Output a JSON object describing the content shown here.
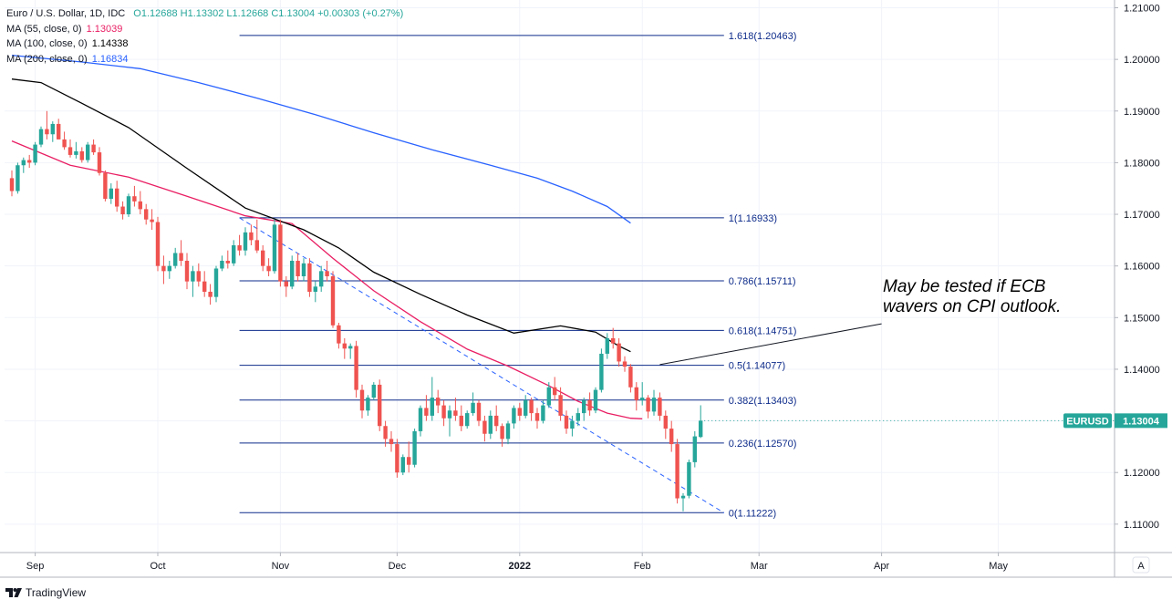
{
  "header": {
    "symbol_line": "Euro / U.S. Dollar, 1D, IDC",
    "ohlc": "O1.12688  H1.13302  L1.12668  C1.13004  +0.00303 (+0.27%)",
    "ma55_label": "MA (55, close, 0)",
    "ma55_value": "1.13039",
    "ma100_label": "MA (100, close, 0)",
    "ma100_value": "1.14338",
    "ma200_label": "MA (200, close, 0)",
    "ma200_value": "1.16834"
  },
  "colors": {
    "up": "#26a69a",
    "down": "#ef5350",
    "ma55": "#e91e63",
    "ma100": "#000000",
    "ma200": "#2962ff",
    "fib": "#0d2b8a",
    "badge": "#26a69a"
  },
  "price_badge": {
    "symbol": "EURUSD",
    "price": "1.13004"
  },
  "annotation": {
    "line1": "May be tested if ECB",
    "line2": "wavers on CPI outlook."
  },
  "footer": {
    "brand": "TradingView",
    "auto_button": "A"
  },
  "chart_data": {
    "type": "candlestick",
    "title": "Euro / U.S. Dollar, 1D, IDC",
    "ylim": [
      1.1045,
      1.2115
    ],
    "y_ticks": [
      1.11,
      1.12,
      1.13,
      1.14,
      1.15,
      1.16,
      1.17,
      1.18,
      1.19,
      1.2,
      1.21
    ],
    "y_tick_labels": [
      "1.11000",
      "1.12000",
      "1.13000",
      "1.14000",
      "1.15000",
      "1.16000",
      "1.17000",
      "1.18000",
      "1.19000",
      "1.20000",
      "1.21000"
    ],
    "x_range": [
      0,
      209
    ],
    "x_ticks": [
      {
        "index": 4,
        "label": "Sep",
        "bold": false
      },
      {
        "index": 25,
        "label": "Oct",
        "bold": false
      },
      {
        "index": 46,
        "label": "Nov",
        "bold": false
      },
      {
        "index": 66,
        "label": "Dec",
        "bold": false
      },
      {
        "index": 87,
        "label": "2022",
        "bold": true
      },
      {
        "index": 108,
        "label": "Feb",
        "bold": false
      },
      {
        "index": 128,
        "label": "Mar",
        "bold": false
      },
      {
        "index": 149,
        "label": "Apr",
        "bold": false
      },
      {
        "index": 169,
        "label": "May",
        "bold": false
      }
    ],
    "fib_levels": [
      {
        "ratio": "1.618",
        "value": 1.20463,
        "label": "1.618(1.20463)"
      },
      {
        "ratio": "1",
        "value": 1.16933,
        "label": "1(1.16933)"
      },
      {
        "ratio": "0.786",
        "value": 1.15711,
        "label": "0.786(1.15711)"
      },
      {
        "ratio": "0.618",
        "value": 1.14751,
        "label": "0.618(1.14751)"
      },
      {
        "ratio": "0.5",
        "value": 1.14077,
        "label": "0.5(1.14077)"
      },
      {
        "ratio": "0.382",
        "value": 1.13403,
        "label": "0.382(1.13403)"
      },
      {
        "ratio": "0.236",
        "value": 1.1257,
        "label": "0.236(1.12570)"
      },
      {
        "ratio": "0",
        "value": 1.11222,
        "label": "0(1.11222)"
      }
    ],
    "fib_x_range": [
      39,
      122
    ],
    "trendline": {
      "points": [
        [
          39,
          1.1693
        ],
        [
          122,
          1.1122
        ]
      ],
      "style": "dashed"
    },
    "annotation_pointer": {
      "from": [
        111,
        1.1409
      ],
      "to": [
        139,
        1.1502
      ]
    },
    "ma_series": [
      {
        "name": "MA (55, close, 0)",
        "last": 1.13039,
        "points": [
          [
            0,
            1.1842
          ],
          [
            10,
            1.1795
          ],
          [
            20,
            1.1772
          ],
          [
            30,
            1.1735
          ],
          [
            40,
            1.1697
          ],
          [
            48,
            1.1682
          ],
          [
            55,
            1.1615
          ],
          [
            62,
            1.1552
          ],
          [
            70,
            1.1492
          ],
          [
            78,
            1.1439
          ],
          [
            85,
            1.1406
          ],
          [
            92,
            1.1368
          ],
          [
            97,
            1.1338
          ],
          [
            102,
            1.1315
          ],
          [
            106,
            1.1305
          ],
          [
            108,
            1.1304
          ]
        ]
      },
      {
        "name": "MA (100, close, 0)",
        "last": 1.14338,
        "points": [
          [
            0,
            1.1962
          ],
          [
            5,
            1.1955
          ],
          [
            12,
            1.1915
          ],
          [
            20,
            1.1868
          ],
          [
            30,
            1.1789
          ],
          [
            40,
            1.1712
          ],
          [
            50,
            1.167
          ],
          [
            56,
            1.1635
          ],
          [
            62,
            1.1588
          ],
          [
            70,
            1.1545
          ],
          [
            78,
            1.1505
          ],
          [
            86,
            1.147
          ],
          [
            94,
            1.1484
          ],
          [
            100,
            1.1472
          ],
          [
            104,
            1.1445
          ],
          [
            106,
            1.1434
          ]
        ]
      },
      {
        "name": "MA (200, close, 0)",
        "last": 1.16834,
        "points": [
          [
            0,
            1.2008
          ],
          [
            12,
            1.1995
          ],
          [
            22,
            1.1982
          ],
          [
            32,
            1.1955
          ],
          [
            42,
            1.1925
          ],
          [
            52,
            1.1893
          ],
          [
            62,
            1.1858
          ],
          [
            72,
            1.1825
          ],
          [
            82,
            1.1795
          ],
          [
            90,
            1.177
          ],
          [
            96,
            1.1745
          ],
          [
            102,
            1.1715
          ],
          [
            106,
            1.1683
          ]
        ]
      }
    ],
    "candles": [
      [
        1.177,
        1.1785,
        1.1735,
        1.1745
      ],
      [
        1.1745,
        1.18,
        1.174,
        1.1795
      ],
      [
        1.1795,
        1.181,
        1.178,
        1.1805
      ],
      [
        1.1805,
        1.1815,
        1.179,
        1.18
      ],
      [
        1.18,
        1.184,
        1.1795,
        1.1835
      ],
      [
        1.1835,
        1.187,
        1.183,
        1.1865
      ],
      [
        1.1865,
        1.19,
        1.1845,
        1.1855
      ],
      [
        1.1855,
        1.188,
        1.184,
        1.1875
      ],
      [
        1.1875,
        1.1885,
        1.185,
        1.1845
      ],
      [
        1.1845,
        1.186,
        1.1825,
        1.183
      ],
      [
        1.183,
        1.1845,
        1.181,
        1.1815
      ],
      [
        1.1815,
        1.184,
        1.1808,
        1.1822
      ],
      [
        1.1822,
        1.183,
        1.18,
        1.1805
      ],
      [
        1.1805,
        1.184,
        1.18,
        1.1835
      ],
      [
        1.1835,
        1.1845,
        1.1815,
        1.182
      ],
      [
        1.182,
        1.183,
        1.1775,
        1.178
      ],
      [
        1.178,
        1.1785,
        1.1725,
        1.173
      ],
      [
        1.173,
        1.176,
        1.172,
        1.175
      ],
      [
        1.175,
        1.1765,
        1.1705,
        1.1715
      ],
      [
        1.1715,
        1.1725,
        1.169,
        1.17
      ],
      [
        1.17,
        1.174,
        1.1695,
        1.1735
      ],
      [
        1.1735,
        1.1755,
        1.1715,
        1.1725
      ],
      [
        1.1725,
        1.1745,
        1.17,
        1.171
      ],
      [
        1.171,
        1.172,
        1.168,
        1.169
      ],
      [
        1.169,
        1.171,
        1.167,
        1.1685
      ],
      [
        1.1685,
        1.1695,
        1.159,
        1.16
      ],
      [
        1.16,
        1.162,
        1.1565,
        1.159
      ],
      [
        1.159,
        1.161,
        1.1575,
        1.16
      ],
      [
        1.16,
        1.1635,
        1.1595,
        1.1625
      ],
      [
        1.1625,
        1.165,
        1.16,
        1.161
      ],
      [
        1.161,
        1.1625,
        1.1555,
        1.157
      ],
      [
        1.157,
        1.16,
        1.154,
        1.159
      ],
      [
        1.159,
        1.1605,
        1.156,
        1.157
      ],
      [
        1.157,
        1.159,
        1.154,
        1.155
      ],
      [
        1.155,
        1.1565,
        1.1525,
        1.154
      ],
      [
        1.154,
        1.16,
        1.153,
        1.1595
      ],
      [
        1.1595,
        1.162,
        1.159,
        1.161
      ],
      [
        1.161,
        1.163,
        1.1595,
        1.1605
      ],
      [
        1.1605,
        1.165,
        1.16,
        1.164
      ],
      [
        1.164,
        1.166,
        1.162,
        1.163
      ],
      [
        1.163,
        1.1675,
        1.162,
        1.1665
      ],
      [
        1.1665,
        1.168,
        1.164,
        1.165
      ],
      [
        1.165,
        1.169,
        1.1625,
        1.163
      ],
      [
        1.163,
        1.164,
        1.159,
        1.16
      ],
      [
        1.16,
        1.1615,
        1.158,
        1.159
      ],
      [
        1.159,
        1.169,
        1.1585,
        1.168
      ],
      [
        1.168,
        1.169,
        1.156,
        1.157
      ],
      [
        1.157,
        1.158,
        1.154,
        1.156
      ],
      [
        1.156,
        1.162,
        1.1555,
        1.161
      ],
      [
        1.161,
        1.1625,
        1.157,
        1.158
      ],
      [
        1.158,
        1.1615,
        1.157,
        1.1605
      ],
      [
        1.1605,
        1.1615,
        1.154,
        1.155
      ],
      [
        1.155,
        1.157,
        1.153,
        1.156
      ],
      [
        1.156,
        1.16,
        1.155,
        1.159
      ],
      [
        1.159,
        1.161,
        1.157,
        1.158
      ],
      [
        1.158,
        1.159,
        1.148,
        1.1485
      ],
      [
        1.1485,
        1.149,
        1.144,
        1.145
      ],
      [
        1.145,
        1.146,
        1.142,
        1.144
      ],
      [
        1.144,
        1.145,
        1.142,
        1.1445
      ],
      [
        1.1445,
        1.1455,
        1.1345,
        1.136
      ],
      [
        1.136,
        1.137,
        1.1305,
        1.132
      ],
      [
        1.132,
        1.135,
        1.131,
        1.1345
      ],
      [
        1.1345,
        1.1375,
        1.134,
        1.137
      ],
      [
        1.137,
        1.138,
        1.128,
        1.129
      ],
      [
        1.129,
        1.13,
        1.125,
        1.1265
      ],
      [
        1.1265,
        1.128,
        1.124,
        1.1255
      ],
      [
        1.1255,
        1.1265,
        1.119,
        1.12
      ],
      [
        1.12,
        1.1235,
        1.1195,
        1.123
      ],
      [
        1.123,
        1.126,
        1.12,
        1.1215
      ],
      [
        1.1215,
        1.1285,
        1.121,
        1.128
      ],
      [
        1.128,
        1.133,
        1.127,
        1.1325
      ],
      [
        1.1325,
        1.135,
        1.13,
        1.131
      ],
      [
        1.131,
        1.1385,
        1.13,
        1.1345
      ],
      [
        1.1345,
        1.136,
        1.1315,
        1.133
      ],
      [
        1.133,
        1.134,
        1.129,
        1.1305
      ],
      [
        1.1305,
        1.133,
        1.127,
        1.132
      ],
      [
        1.132,
        1.1345,
        1.13,
        1.131
      ],
      [
        1.131,
        1.133,
        1.128,
        1.129
      ],
      [
        1.129,
        1.132,
        1.1285,
        1.1315
      ],
      [
        1.1315,
        1.1355,
        1.131,
        1.1335
      ],
      [
        1.1335,
        1.134,
        1.129,
        1.13
      ],
      [
        1.13,
        1.131,
        1.126,
        1.1275
      ],
      [
        1.1275,
        1.132,
        1.1265,
        1.131
      ],
      [
        1.131,
        1.133,
        1.128,
        1.129
      ],
      [
        1.129,
        1.1295,
        1.125,
        1.1265
      ],
      [
        1.1265,
        1.13,
        1.1255,
        1.1295
      ],
      [
        1.1295,
        1.133,
        1.1285,
        1.1325
      ],
      [
        1.1325,
        1.1335,
        1.13,
        1.131
      ],
      [
        1.131,
        1.135,
        1.1305,
        1.134
      ],
      [
        1.134,
        1.1345,
        1.13,
        1.1315
      ],
      [
        1.1315,
        1.1325,
        1.1285,
        1.13
      ],
      [
        1.13,
        1.134,
        1.1295,
        1.133
      ],
      [
        1.133,
        1.1375,
        1.1325,
        1.1365
      ],
      [
        1.1365,
        1.1385,
        1.134,
        1.135
      ],
      [
        1.135,
        1.1365,
        1.13,
        1.131
      ],
      [
        1.131,
        1.132,
        1.1275,
        1.1285
      ],
      [
        1.1285,
        1.131,
        1.127,
        1.13
      ],
      [
        1.13,
        1.1325,
        1.129,
        1.1315
      ],
      [
        1.1315,
        1.1345,
        1.13,
        1.134
      ],
      [
        1.134,
        1.1355,
        1.131,
        1.132
      ],
      [
        1.132,
        1.1365,
        1.1315,
        1.136
      ],
      [
        1.136,
        1.144,
        1.1355,
        1.143
      ],
      [
        1.143,
        1.147,
        1.142,
        1.146
      ],
      [
        1.146,
        1.148,
        1.144,
        1.145
      ],
      [
        1.145,
        1.146,
        1.1405,
        1.1415
      ],
      [
        1.1415,
        1.1425,
        1.1395,
        1.1405
      ],
      [
        1.1405,
        1.141,
        1.1355,
        1.1365
      ],
      [
        1.1365,
        1.1375,
        1.132,
        1.134
      ],
      [
        1.134,
        1.1375,
        1.133,
        1.1345
      ],
      [
        1.1345,
        1.135,
        1.1305,
        1.1318
      ],
      [
        1.1318,
        1.136,
        1.131,
        1.1345
      ],
      [
        1.1345,
        1.1355,
        1.13,
        1.131
      ],
      [
        1.131,
        1.132,
        1.1265,
        1.1285
      ],
      [
        1.1285,
        1.13,
        1.124,
        1.1255
      ],
      [
        1.1255,
        1.1265,
        1.114,
        1.115
      ],
      [
        1.115,
        1.116,
        1.1125,
        1.1155
      ],
      [
        1.1155,
        1.1225,
        1.115,
        1.122
      ],
      [
        1.122,
        1.128,
        1.121,
        1.127
      ],
      [
        1.12688,
        1.13302,
        1.12668,
        1.13004
      ]
    ],
    "candles_start_index": 0,
    "candle_spacing": 1
  }
}
